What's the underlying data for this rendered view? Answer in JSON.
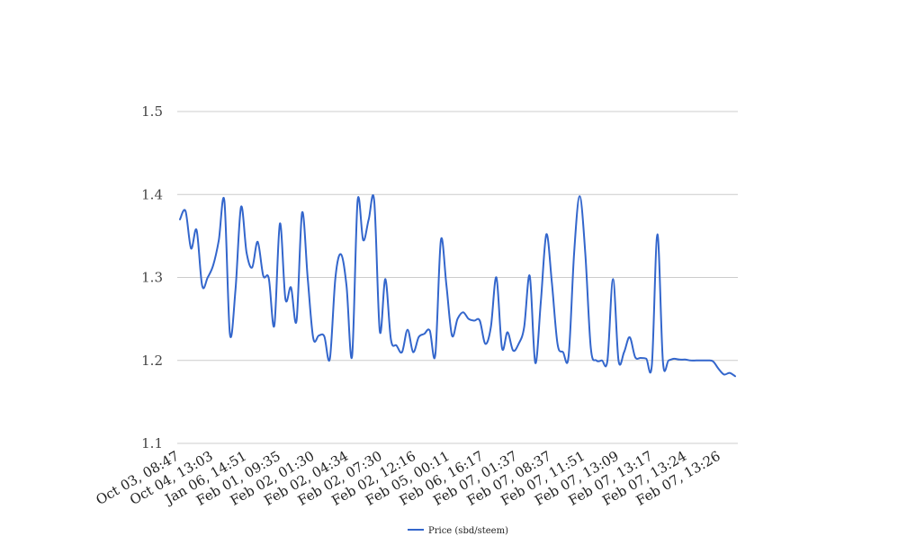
{
  "chart_data": {
    "type": "line",
    "title": "",
    "xlabel": "",
    "ylabel": "",
    "ylim": [
      1.1,
      1.5
    ],
    "yticks": [
      "1.5",
      "1.4",
      "1.3",
      "1.2",
      "1.1"
    ],
    "ytick_values": [
      1.5,
      1.4,
      1.3,
      1.2,
      1.1
    ],
    "grid": true,
    "legend_position": "bottom",
    "xtick_labels": [
      "Oct 03, 08:47",
      "Oct 04, 13:03",
      "Jan 06, 14:51",
      "Feb 01, 09:35",
      "Feb 02, 01:30",
      "Feb 02, 04:34",
      "Feb 02, 07:30",
      "Feb 02, 12:16",
      "Feb 05, 00:11",
      "Feb 06, 16:17",
      "Feb 07, 01:37",
      "Feb 07, 08:37",
      "Feb 07, 11:51",
      "Feb 07, 13:09",
      "Feb 07, 13:17",
      "Feb 07, 13:24",
      "Feb 07, 13:26"
    ],
    "series": [
      {
        "name": "Price (sbd/steem)",
        "color": "#3366cc",
        "values": [
          1.37,
          1.38,
          1.335,
          1.357,
          1.29,
          1.3,
          1.315,
          1.345,
          1.392,
          1.232,
          1.285,
          1.385,
          1.33,
          1.312,
          1.343,
          1.302,
          1.299,
          1.242,
          1.365,
          1.274,
          1.288,
          1.248,
          1.378,
          1.3,
          1.227,
          1.23,
          1.229,
          1.202,
          1.3,
          1.328,
          1.29,
          1.205,
          1.392,
          1.345,
          1.37,
          1.392,
          1.235,
          1.298,
          1.225,
          1.218,
          1.21,
          1.237,
          1.21,
          1.228,
          1.232,
          1.236,
          1.207,
          1.345,
          1.29,
          1.23,
          1.25,
          1.258,
          1.25,
          1.248,
          1.248,
          1.22,
          1.24,
          1.3,
          1.215,
          1.234,
          1.212,
          1.22,
          1.24,
          1.302,
          1.197,
          1.27,
          1.352,
          1.293,
          1.22,
          1.21,
          1.205,
          1.33,
          1.398,
          1.33,
          1.215,
          1.2,
          1.2,
          1.2,
          1.298,
          1.2,
          1.21,
          1.228,
          1.204,
          1.203,
          1.202,
          1.195,
          1.352,
          1.198,
          1.2,
          1.202,
          1.201,
          1.201,
          1.2,
          1.2,
          1.2,
          1.2,
          1.199,
          1.19,
          1.183,
          1.185,
          1.181
        ]
      }
    ]
  }
}
